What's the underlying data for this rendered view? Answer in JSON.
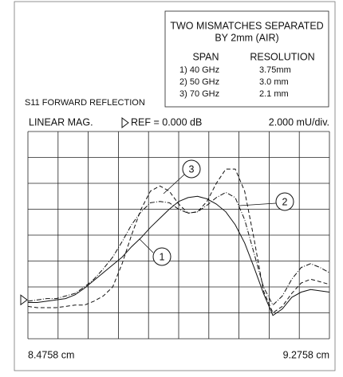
{
  "chart_data": {
    "type": "line",
    "title": "S11 FORWARD REFLECTION",
    "format_label": "LINEAR MAG.",
    "ref_label": "REF = 0.000 dB",
    "scale_label": "2.000 mU/div.",
    "ref_level": 0,
    "info_box": {
      "title_lines": [
        "TWO MISMATCHES SEPARATED",
        "BY 2mm (AIR)"
      ],
      "headers": [
        "SPAN",
        "RESOLUTION"
      ],
      "rows": [
        [
          "1) 40 GHz",
          "3.75mm"
        ],
        [
          "2) 50 GHz",
          "3.0 mm"
        ],
        [
          "3) 70 GHz",
          "2.1 mm"
        ]
      ]
    },
    "xlim": [
      8.4758,
      9.2758
    ],
    "xticks": [
      {
        "value": 8.4758,
        "label": "8.4758 cm"
      },
      {
        "value": 9.2758,
        "label": "9.2758 cm"
      }
    ],
    "ylim": [
      -3,
      13
    ],
    "grid": {
      "x_divisions": 10,
      "y_divisions": 8
    },
    "x": [
      8.4758,
      8.5008,
      8.5258,
      8.5508,
      8.5758,
      8.6008,
      8.6258,
      8.6508,
      8.6758,
      8.7008,
      8.7258,
      8.7508,
      8.7758,
      8.8008,
      8.8258,
      8.8508,
      8.8758,
      8.9008,
      8.9258,
      8.9508,
      8.9758,
      9.0008,
      9.0258,
      9.0508,
      9.0758,
      9.1008,
      9.1258,
      9.1508,
      9.1758,
      9.2008,
      9.2258,
      9.2508,
      9.2758
    ],
    "series": [
      {
        "name": "1",
        "color": "#111111",
        "dash": "solid",
        "values": [
          -0.2,
          -0.2,
          -0.1,
          0.0,
          0.1,
          0.4,
          0.9,
          1.5,
          2.1,
          2.7,
          3.3,
          4.1,
          4.8,
          5.6,
          6.3,
          7.0,
          7.6,
          7.9,
          8.0,
          7.8,
          7.4,
          6.8,
          5.8,
          4.4,
          2.5,
          0.5,
          -1.2,
          -0.7,
          0.2,
          0.6,
          0.8,
          0.7,
          0.6
        ]
      },
      {
        "name": "2",
        "color": "#111111",
        "dash": "dashdot",
        "values": [
          -0.1,
          0.0,
          0.1,
          0.1,
          0.3,
          0.5,
          1.0,
          1.6,
          2.4,
          3.3,
          4.5,
          5.8,
          6.8,
          7.5,
          7.6,
          7.5,
          7.0,
          6.7,
          6.8,
          7.3,
          7.9,
          8.3,
          7.9,
          6.2,
          3.6,
          1.0,
          -0.4,
          0.3,
          1.6,
          2.5,
          2.8,
          2.5,
          2.1
        ]
      },
      {
        "name": "3",
        "color": "#111111",
        "dash": "dashed",
        "values": [
          -0.5,
          -0.6,
          -0.6,
          -0.6,
          -0.5,
          -0.4,
          -0.4,
          -0.1,
          0.3,
          1.0,
          2.8,
          5.0,
          7.0,
          8.4,
          8.8,
          8.4,
          7.4,
          6.7,
          6.8,
          7.6,
          9.0,
          10.1,
          10.1,
          8.4,
          4.7,
          0.7,
          -1.0,
          -0.5,
          0.5,
          1.3,
          1.6,
          1.4,
          1.2
        ]
      }
    ]
  }
}
